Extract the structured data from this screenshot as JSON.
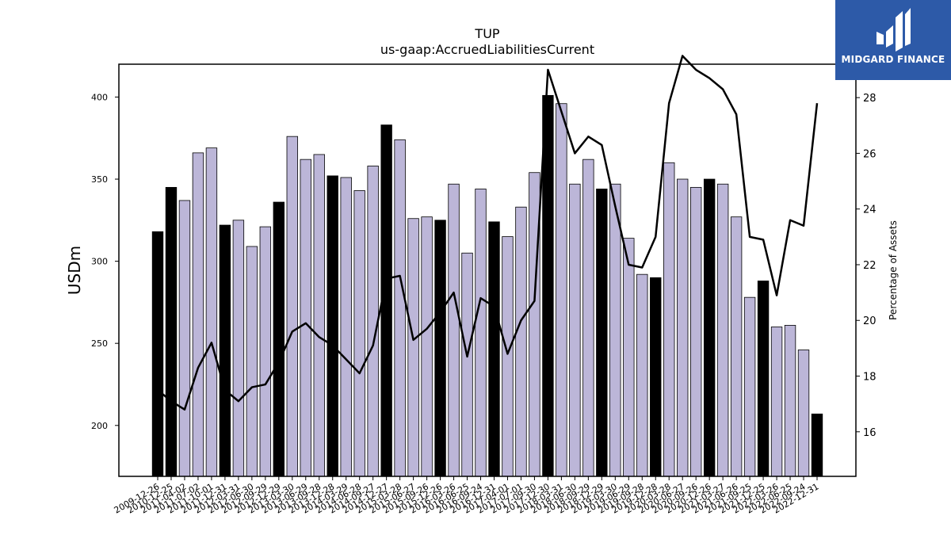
{
  "brand": {
    "name": "MIDGARD FINANCE"
  },
  "colors": {
    "bar_default": "#bcb6d8",
    "bar_highlight": "#000000",
    "line": "#000000",
    "logo_bg": "#2d5aa8"
  },
  "chart_data": {
    "type": "bar",
    "title": "TUP",
    "subtitle": "us-gaap:AccruedLiabilitiesCurrent",
    "ylabel": "USDm",
    "y2label": "Percentage of Assets",
    "ylim": [
      169,
      420
    ],
    "y2lim": [
      14.4,
      29.2
    ],
    "yticks": [
      200,
      250,
      300,
      350,
      400
    ],
    "y2ticks": [
      16,
      18,
      20,
      22,
      24,
      26,
      28
    ],
    "categories": [
      "2009-12-26",
      "2010-12-25",
      "2011-04-02",
      "2011-07-02",
      "2011-10-01",
      "2011-12-31",
      "2012-03-31",
      "2012-06-30",
      "2012-09-29",
      "2012-12-29",
      "2013-03-30",
      "2013-06-29",
      "2013-09-28",
      "2013-12-28",
      "2014-03-29",
      "2014-06-28",
      "2014-09-27",
      "2014-12-27",
      "2015-03-28",
      "2015-06-27",
      "2015-09-26",
      "2015-12-26",
      "2016-03-26",
      "2016-06-25",
      "2016-09-24",
      "2016-12-31",
      "2017-04-01",
      "2017-07-01",
      "2017-09-30",
      "2017-12-30",
      "2018-03-31",
      "2018-06-30",
      "2018-09-29",
      "2018-12-29",
      "2019-03-30",
      "2019-06-29",
      "2019-09-28",
      "2019-12-28",
      "2020-03-28",
      "2020-06-27",
      "2020-09-26",
      "2020-12-26",
      "2021-03-27",
      "2021-06-26",
      "2021-09-25",
      "2021-12-25",
      "2022-03-26",
      "2022-06-25",
      "2022-09-24",
      "2022-12-31"
    ],
    "series": [
      {
        "type": "bar",
        "values": [
          318,
          345,
          337,
          366,
          369,
          322,
          325,
          309,
          321,
          336,
          376,
          362,
          365,
          352,
          351,
          343,
          358,
          383,
          374,
          326,
          327,
          325,
          347,
          305,
          344,
          324,
          315,
          333,
          354,
          401,
          396,
          347,
          362,
          344,
          347,
          314,
          292,
          290,
          360,
          350,
          345,
          350,
          347,
          327,
          278,
          288,
          260,
          261,
          246,
          207
        ],
        "highlight": [
          true,
          true,
          false,
          false,
          false,
          true,
          false,
          false,
          false,
          true,
          false,
          false,
          false,
          true,
          false,
          false,
          false,
          true,
          false,
          false,
          false,
          true,
          false,
          false,
          false,
          true,
          false,
          false,
          false,
          true,
          false,
          false,
          false,
          true,
          false,
          false,
          false,
          true,
          false,
          false,
          false,
          true,
          false,
          false,
          false,
          true,
          false,
          false,
          false,
          true
        ]
      },
      {
        "type": "line",
        "axis": "right",
        "values": [
          17.5,
          17.1,
          16.8,
          18.3,
          19.2,
          17.5,
          17.1,
          17.6,
          17.7,
          18.5,
          19.6,
          19.9,
          19.4,
          19.1,
          18.6,
          18.1,
          19.1,
          21.5,
          21.6,
          19.3,
          19.7,
          20.3,
          21.0,
          18.7,
          20.8,
          20.5,
          18.8,
          20.0,
          20.7,
          29.0,
          27.5,
          26.0,
          26.6,
          26.3,
          24.1,
          22.0,
          21.9,
          23.0,
          27.8,
          29.5,
          29.0,
          28.7,
          28.3,
          27.4,
          23.0,
          22.9,
          20.9,
          23.6,
          23.4,
          27.8
        ]
      }
    ]
  }
}
